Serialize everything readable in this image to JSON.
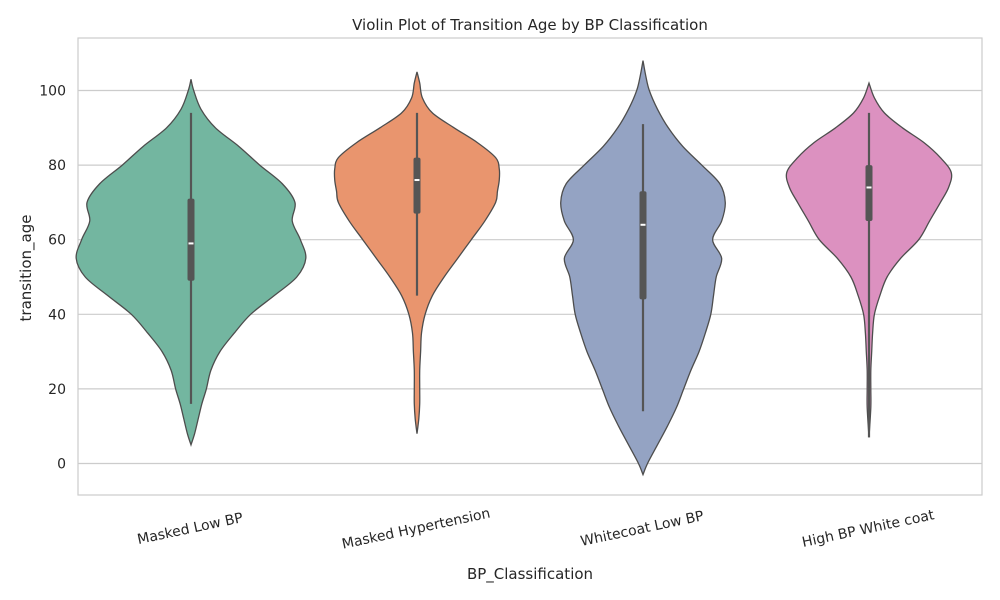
{
  "chart_data": {
    "type": "violin",
    "title": "Violin Plot of Transition Age by BP Classification",
    "xlabel": "BP_Classification",
    "ylabel": "transition_age",
    "ylim": [
      -8.5,
      113.5
    ],
    "yticks": [
      0,
      20,
      40,
      60,
      80,
      100
    ],
    "grid": "horizontal",
    "categories": [
      "Masked Low BP",
      "Masked Hypertension",
      "Whitecoat Low BP",
      "High BP White coat"
    ],
    "series": [
      {
        "category": "Masked Low BP",
        "color": "#73b6a0",
        "median": 59,
        "q1": 49,
        "q3": 71,
        "whisker_low": 16,
        "whisker_high": 94,
        "density": [
          [
            5,
            0
          ],
          [
            8,
            4
          ],
          [
            12,
            8
          ],
          [
            16,
            12
          ],
          [
            20,
            17
          ],
          [
            25,
            22
          ],
          [
            30,
            32
          ],
          [
            35,
            48
          ],
          [
            40,
            66
          ],
          [
            45,
            92
          ],
          [
            50,
            117
          ],
          [
            55,
            127
          ],
          [
            60,
            121
          ],
          [
            65,
            112
          ],
          [
            70,
            115
          ],
          [
            75,
            101
          ],
          [
            80,
            76
          ],
          [
            85,
            53
          ],
          [
            90,
            27
          ],
          [
            95,
            11
          ],
          [
            100,
            3
          ],
          [
            103,
            0
          ]
        ]
      },
      {
        "category": "Masked Hypertension",
        "color": "#e9956e",
        "median": 76,
        "q1": 67,
        "q3": 82,
        "whisker_low": 45,
        "whisker_high": 94,
        "density": [
          [
            8,
            0
          ],
          [
            12,
            2
          ],
          [
            16,
            3
          ],
          [
            20,
            3
          ],
          [
            25,
            3
          ],
          [
            30,
            4
          ],
          [
            35,
            5
          ],
          [
            40,
            9
          ],
          [
            45,
            17
          ],
          [
            50,
            30
          ],
          [
            55,
            45
          ],
          [
            60,
            60
          ],
          [
            65,
            75
          ],
          [
            70,
            87
          ],
          [
            73,
            89
          ],
          [
            76,
            91
          ],
          [
            79,
            91
          ],
          [
            82,
            87
          ],
          [
            86,
            67
          ],
          [
            90,
            41
          ],
          [
            94,
            17
          ],
          [
            98,
            6
          ],
          [
            102,
            3
          ],
          [
            105,
            0
          ]
        ]
      },
      {
        "category": "Whitecoat Low BP",
        "color": "#94a3c3",
        "median": 64,
        "q1": 44,
        "q3": 73,
        "whisker_low": 14,
        "whisker_high": 91,
        "density": [
          [
            -3,
            0
          ],
          [
            0,
            5
          ],
          [
            5,
            16
          ],
          [
            10,
            27
          ],
          [
            15,
            37
          ],
          [
            20,
            45
          ],
          [
            25,
            53
          ],
          [
            30,
            62
          ],
          [
            35,
            69
          ],
          [
            40,
            75
          ],
          [
            45,
            78
          ],
          [
            50,
            81
          ],
          [
            55,
            87
          ],
          [
            60,
            77
          ],
          [
            65,
            87
          ],
          [
            70,
            91
          ],
          [
            75,
            85
          ],
          [
            80,
            65
          ],
          [
            85,
            44
          ],
          [
            90,
            28
          ],
          [
            95,
            16
          ],
          [
            100,
            7
          ],
          [
            104,
            3
          ],
          [
            108,
            0
          ]
        ]
      },
      {
        "category": "High BP White coat",
        "color": "#dc91c0",
        "median": 74,
        "q1": 65,
        "q3": 80,
        "whisker_low": 7,
        "whisker_high": 94,
        "density": [
          [
            7,
            0
          ],
          [
            15,
            2
          ],
          [
            20,
            2
          ],
          [
            25,
            2
          ],
          [
            30,
            3
          ],
          [
            35,
            4
          ],
          [
            40,
            6
          ],
          [
            45,
            12
          ],
          [
            50,
            20
          ],
          [
            55,
            35
          ],
          [
            60,
            55
          ],
          [
            65,
            67
          ],
          [
            70,
            79
          ],
          [
            74,
            88
          ],
          [
            78,
            91
          ],
          [
            82,
            79
          ],
          [
            86,
            61
          ],
          [
            90,
            37
          ],
          [
            94,
            17
          ],
          [
            98,
            6
          ],
          [
            102,
            0
          ]
        ]
      }
    ]
  }
}
